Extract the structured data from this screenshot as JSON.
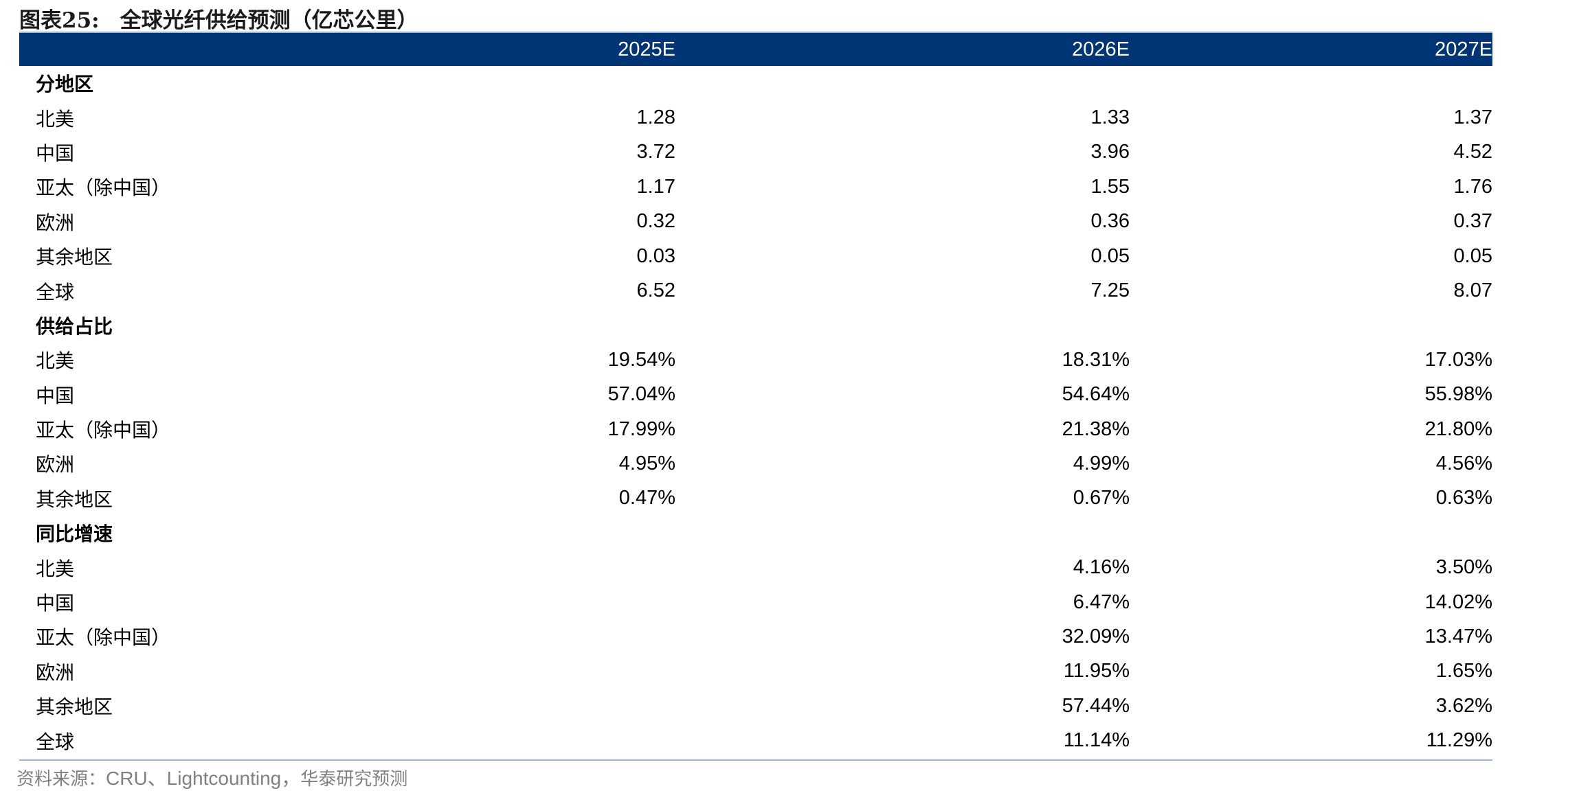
{
  "title": {
    "figure_label": "图表25:",
    "text": "全球光纤供给预测（亿芯公里）"
  },
  "table": {
    "columns": [
      "",
      "2025E",
      "2026E",
      "2027E"
    ],
    "rows": [
      {
        "type": "section",
        "label": "分地区",
        "values": [
          "",
          "",
          ""
        ]
      },
      {
        "type": "data",
        "label": "北美",
        "values": [
          "1.28",
          "1.33",
          "1.37"
        ]
      },
      {
        "type": "data",
        "label": "中国",
        "values": [
          "3.72",
          "3.96",
          "4.52"
        ]
      },
      {
        "type": "data",
        "label": "亚太（除中国）",
        "values": [
          "1.17",
          "1.55",
          "1.76"
        ]
      },
      {
        "type": "data",
        "label": "欧洲",
        "values": [
          "0.32",
          "0.36",
          "0.37"
        ]
      },
      {
        "type": "data",
        "label": "其余地区",
        "values": [
          "0.03",
          "0.05",
          "0.05"
        ]
      },
      {
        "type": "data",
        "label": "全球",
        "values": [
          "6.52",
          "7.25",
          "8.07"
        ]
      },
      {
        "type": "section",
        "label": "供给占比",
        "values": [
          "",
          "",
          ""
        ]
      },
      {
        "type": "data",
        "label": "北美",
        "values": [
          "19.54%",
          "18.31%",
          "17.03%"
        ]
      },
      {
        "type": "data",
        "label": "中国",
        "values": [
          "57.04%",
          "54.64%",
          "55.98%"
        ]
      },
      {
        "type": "data",
        "label": "亚太（除中国）",
        "values": [
          "17.99%",
          "21.38%",
          "21.80%"
        ]
      },
      {
        "type": "data",
        "label": "欧洲",
        "values": [
          "4.95%",
          "4.99%",
          "4.56%"
        ]
      },
      {
        "type": "data",
        "label": "其余地区",
        "values": [
          "0.47%",
          "0.67%",
          "0.63%"
        ]
      },
      {
        "type": "section",
        "label": "同比增速",
        "values": [
          "",
          "",
          ""
        ]
      },
      {
        "type": "data",
        "label": "北美",
        "values": [
          "",
          "4.16%",
          "3.50%"
        ]
      },
      {
        "type": "data",
        "label": "中国",
        "values": [
          "",
          "6.47%",
          "14.02%"
        ]
      },
      {
        "type": "data",
        "label": "亚太（除中国）",
        "values": [
          "",
          "32.09%",
          "13.47%"
        ]
      },
      {
        "type": "data",
        "label": "欧洲",
        "values": [
          "",
          "11.95%",
          "1.65%"
        ]
      },
      {
        "type": "data",
        "label": "其余地区",
        "values": [
          "",
          "57.44%",
          "3.62%"
        ]
      },
      {
        "type": "data",
        "label": "全球",
        "values": [
          "",
          "11.14%",
          "11.29%"
        ]
      }
    ]
  },
  "source": {
    "prefix": "资料来源：",
    "latin": "CRU、Lightcounting，",
    "suffix": "华泰研究预测"
  },
  "colors": {
    "header_bg": "#003575",
    "header_text": "#ffffff",
    "rule": "#9fb3cf",
    "source_text": "#808080"
  }
}
